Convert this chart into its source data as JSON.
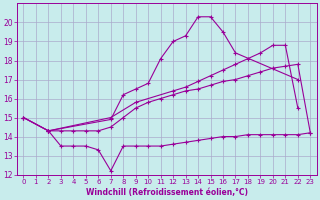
{
  "bg_color": "#c8ecec",
  "line_color": "#990099",
  "grid_color": "#aaaacc",
  "xlabel": "Windchill (Refroidissement éolien,°C)",
  "xlabel_color": "#990099",
  "tick_color": "#990099",
  "xlim": [
    -0.5,
    23.5
  ],
  "ylim": [
    12,
    21
  ],
  "yticks": [
    12,
    13,
    14,
    15,
    16,
    17,
    18,
    19,
    20
  ],
  "xticks": [
    0,
    1,
    2,
    3,
    4,
    5,
    6,
    7,
    8,
    9,
    10,
    11,
    12,
    13,
    14,
    15,
    16,
    17,
    18,
    19,
    20,
    21,
    22,
    23
  ],
  "series": [
    {
      "x": [
        0,
        2,
        7,
        8,
        9,
        10,
        11,
        12,
        13,
        14,
        15,
        16,
        17,
        22
      ],
      "y": [
        15,
        14.3,
        14.9,
        16.2,
        16.5,
        16.8,
        18.1,
        19.0,
        19.3,
        20.3,
        20.3,
        19.5,
        18.4,
        17.0
      ]
    },
    {
      "x": [
        0,
        2,
        7,
        9,
        12,
        13,
        14,
        15,
        16,
        17,
        18,
        19,
        20,
        21,
        22
      ],
      "y": [
        15,
        14.3,
        15.0,
        15.8,
        16.4,
        16.6,
        16.9,
        17.2,
        17.5,
        17.8,
        18.1,
        18.4,
        18.8,
        18.8,
        15.5
      ]
    },
    {
      "x": [
        0,
        2,
        3,
        4,
        5,
        6,
        7,
        8,
        9,
        10,
        11,
        12,
        13,
        14,
        15,
        16,
        17,
        18,
        19,
        20,
        21,
        22,
        23
      ],
      "y": [
        15,
        14.3,
        14.3,
        14.3,
        14.3,
        14.3,
        14.5,
        15.0,
        15.5,
        15.8,
        16.0,
        16.2,
        16.4,
        16.5,
        16.7,
        16.9,
        17.0,
        17.2,
        17.4,
        17.6,
        17.7,
        17.8,
        14.2
      ]
    },
    {
      "x": [
        2,
        3,
        4,
        5,
        6,
        7,
        8,
        9,
        10,
        11,
        12,
        13,
        14,
        15,
        16,
        17,
        18,
        19,
        20,
        21,
        22,
        23
      ],
      "y": [
        14.3,
        13.5,
        13.5,
        13.5,
        13.3,
        12.2,
        13.5,
        13.5,
        13.5,
        13.5,
        13.6,
        13.7,
        13.8,
        13.9,
        14.0,
        14.0,
        14.1,
        14.1,
        14.1,
        14.1,
        14.1,
        14.2
      ]
    }
  ]
}
